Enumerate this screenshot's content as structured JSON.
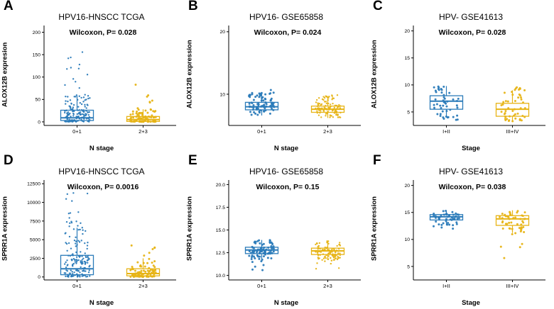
{
  "figure": {
    "background": "#ffffff",
    "group_colors": {
      "blue": "#2b7bb9",
      "gold": "#e7b416"
    }
  },
  "chart_data": [
    {
      "panel": "A",
      "type": "boxplot-jitter",
      "title": "HPV16-HNSCC TCGA",
      "annotation": "Wilcoxon, P= 0.028",
      "ylabel": "ALOX12B expresion",
      "xlabel": "N stage",
      "ylim": [
        -8,
        215
      ],
      "yticks": [
        0,
        50,
        100,
        150,
        200
      ],
      "ytick_labels": [
        "0",
        "50",
        "100",
        "150",
        "200"
      ],
      "groups": [
        {
          "label": "0+1",
          "color": "#2b7bb9",
          "n": 165,
          "box": {
            "whisker_low": 0,
            "q1": 3,
            "median": 9,
            "q3": 26,
            "whisker_high": 58
          },
          "out_high": 165
        },
        {
          "label": "2+3",
          "color": "#e7b416",
          "n": 88,
          "box": {
            "whisker_low": 0,
            "q1": 1,
            "median": 5,
            "q3": 12,
            "whisker_high": 28
          },
          "out_high": 100
        }
      ]
    },
    {
      "panel": "B",
      "type": "boxplot-jitter",
      "title": "HPV16- GSE65858",
      "annotation": "Wilcoxon, P= 0.024",
      "ylabel": "ALOX12B expression",
      "xlabel": "N stage",
      "ylim": [
        5,
        21
      ],
      "yticks": [
        10,
        20
      ],
      "ytick_labels": [
        "10",
        "20"
      ],
      "groups": [
        {
          "label": "0+1",
          "color": "#2b7bb9",
          "n": 92,
          "box": {
            "whisker_low": 6.6,
            "q1": 7.5,
            "median": 8.0,
            "q3": 8.7,
            "whisker_high": 10.2
          },
          "out_high": 10.8
        },
        {
          "label": "2+3",
          "color": "#e7b416",
          "n": 110,
          "box": {
            "whisker_low": 6.2,
            "q1": 7.1,
            "median": 7.6,
            "q3": 8.1,
            "whisker_high": 9.4
          },
          "out_high": 10.0
        }
      ]
    },
    {
      "panel": "C",
      "type": "boxplot-jitter",
      "title": "HPV- GSE41613",
      "annotation": "Wilcoxon, P= 0.028",
      "ylabel": "ALOX12B expression",
      "xlabel": "Stage",
      "ylim": [
        2.5,
        21
      ],
      "yticks": [
        5,
        10,
        15,
        20
      ],
      "ytick_labels": [
        "5",
        "10",
        "15",
        "20"
      ],
      "groups": [
        {
          "label": "I+II",
          "color": "#2b7bb9",
          "n": 48,
          "box": {
            "whisker_low": 4.0,
            "q1": 5.5,
            "median": 7.0,
            "q3": 8.0,
            "whisker_high": 9.8
          },
          "out_low": 3.5
        },
        {
          "label": "III+IV",
          "color": "#e7b416",
          "n": 50,
          "box": {
            "whisker_low": 3.2,
            "q1": 4.2,
            "median": 5.5,
            "q3": 6.6,
            "whisker_high": 9.0
          },
          "out_high": 9.6
        }
      ]
    },
    {
      "panel": "D",
      "type": "boxplot-jitter",
      "title": "HPV16-HNSCC TCGA",
      "annotation": "Wilcoxon, P= 0.0016",
      "ylabel": "SPRR1A expression",
      "xlabel": "N stage",
      "ylim": [
        -400,
        13000
      ],
      "yticks": [
        0,
        2500,
        5000,
        7500,
        10000,
        12500
      ],
      "ytick_labels": [
        "0",
        "2500",
        "5000",
        "7500",
        "10000",
        "12500"
      ],
      "groups": [
        {
          "label": "0+1",
          "color": "#2b7bb9",
          "n": 165,
          "box": {
            "whisker_low": 0,
            "q1": 300,
            "median": 1100,
            "q3": 2900,
            "whisker_high": 6600
          },
          "out_high": 11500
        },
        {
          "label": "2+3",
          "color": "#e7b416",
          "n": 88,
          "box": {
            "whisker_low": 0,
            "q1": 150,
            "median": 450,
            "q3": 1100,
            "whisker_high": 2500
          },
          "out_high": 4800
        }
      ]
    },
    {
      "panel": "E",
      "type": "boxplot-jitter",
      "title": "HPV16- GSE65858",
      "annotation": "Wilcoxon, P= 0.15",
      "ylabel": "SPRR1A expression",
      "xlabel": "N stage",
      "ylim": [
        9.5,
        20.5
      ],
      "yticks": [
        10,
        12.5,
        15,
        17.5,
        20
      ],
      "ytick_labels": [
        "10.0",
        "12.5",
        "15.0",
        "17.5",
        "20.0"
      ],
      "groups": [
        {
          "label": "0+1",
          "color": "#2b7bb9",
          "n": 92,
          "box": {
            "whisker_low": 11.6,
            "q1": 12.4,
            "median": 12.8,
            "q3": 13.1,
            "whisker_high": 13.9
          },
          "out_low": 10.1
        },
        {
          "label": "2+3",
          "color": "#e7b416",
          "n": 110,
          "box": {
            "whisker_low": 11.7,
            "q1": 12.3,
            "median": 12.7,
            "q3": 13.0,
            "whisker_high": 13.8
          },
          "out_low": 10.6
        }
      ]
    },
    {
      "panel": "F",
      "type": "boxplot-jitter",
      "title": "HPV- GSE41613",
      "annotation": "Wilcoxon, P= 0.038",
      "ylabel": "SPRR1A expression",
      "xlabel": "Stage",
      "ylim": [
        2.5,
        21
      ],
      "yticks": [
        5,
        10,
        15,
        20
      ],
      "ytick_labels": [
        "5",
        "10",
        "15",
        "20"
      ],
      "groups": [
        {
          "label": "I+II",
          "color": "#2b7bb9",
          "n": 48,
          "box": {
            "whisker_low": 12.6,
            "q1": 13.6,
            "median": 14.2,
            "q3": 14.6,
            "whisker_high": 15.3
          },
          "out_low": 11.9
        },
        {
          "label": "III+IV",
          "color": "#e7b416",
          "n": 50,
          "box": {
            "whisker_low": 11.2,
            "q1": 12.6,
            "median": 13.8,
            "q3": 14.4,
            "whisker_high": 15.4
          },
          "out_low": 4.3
        }
      ]
    }
  ]
}
